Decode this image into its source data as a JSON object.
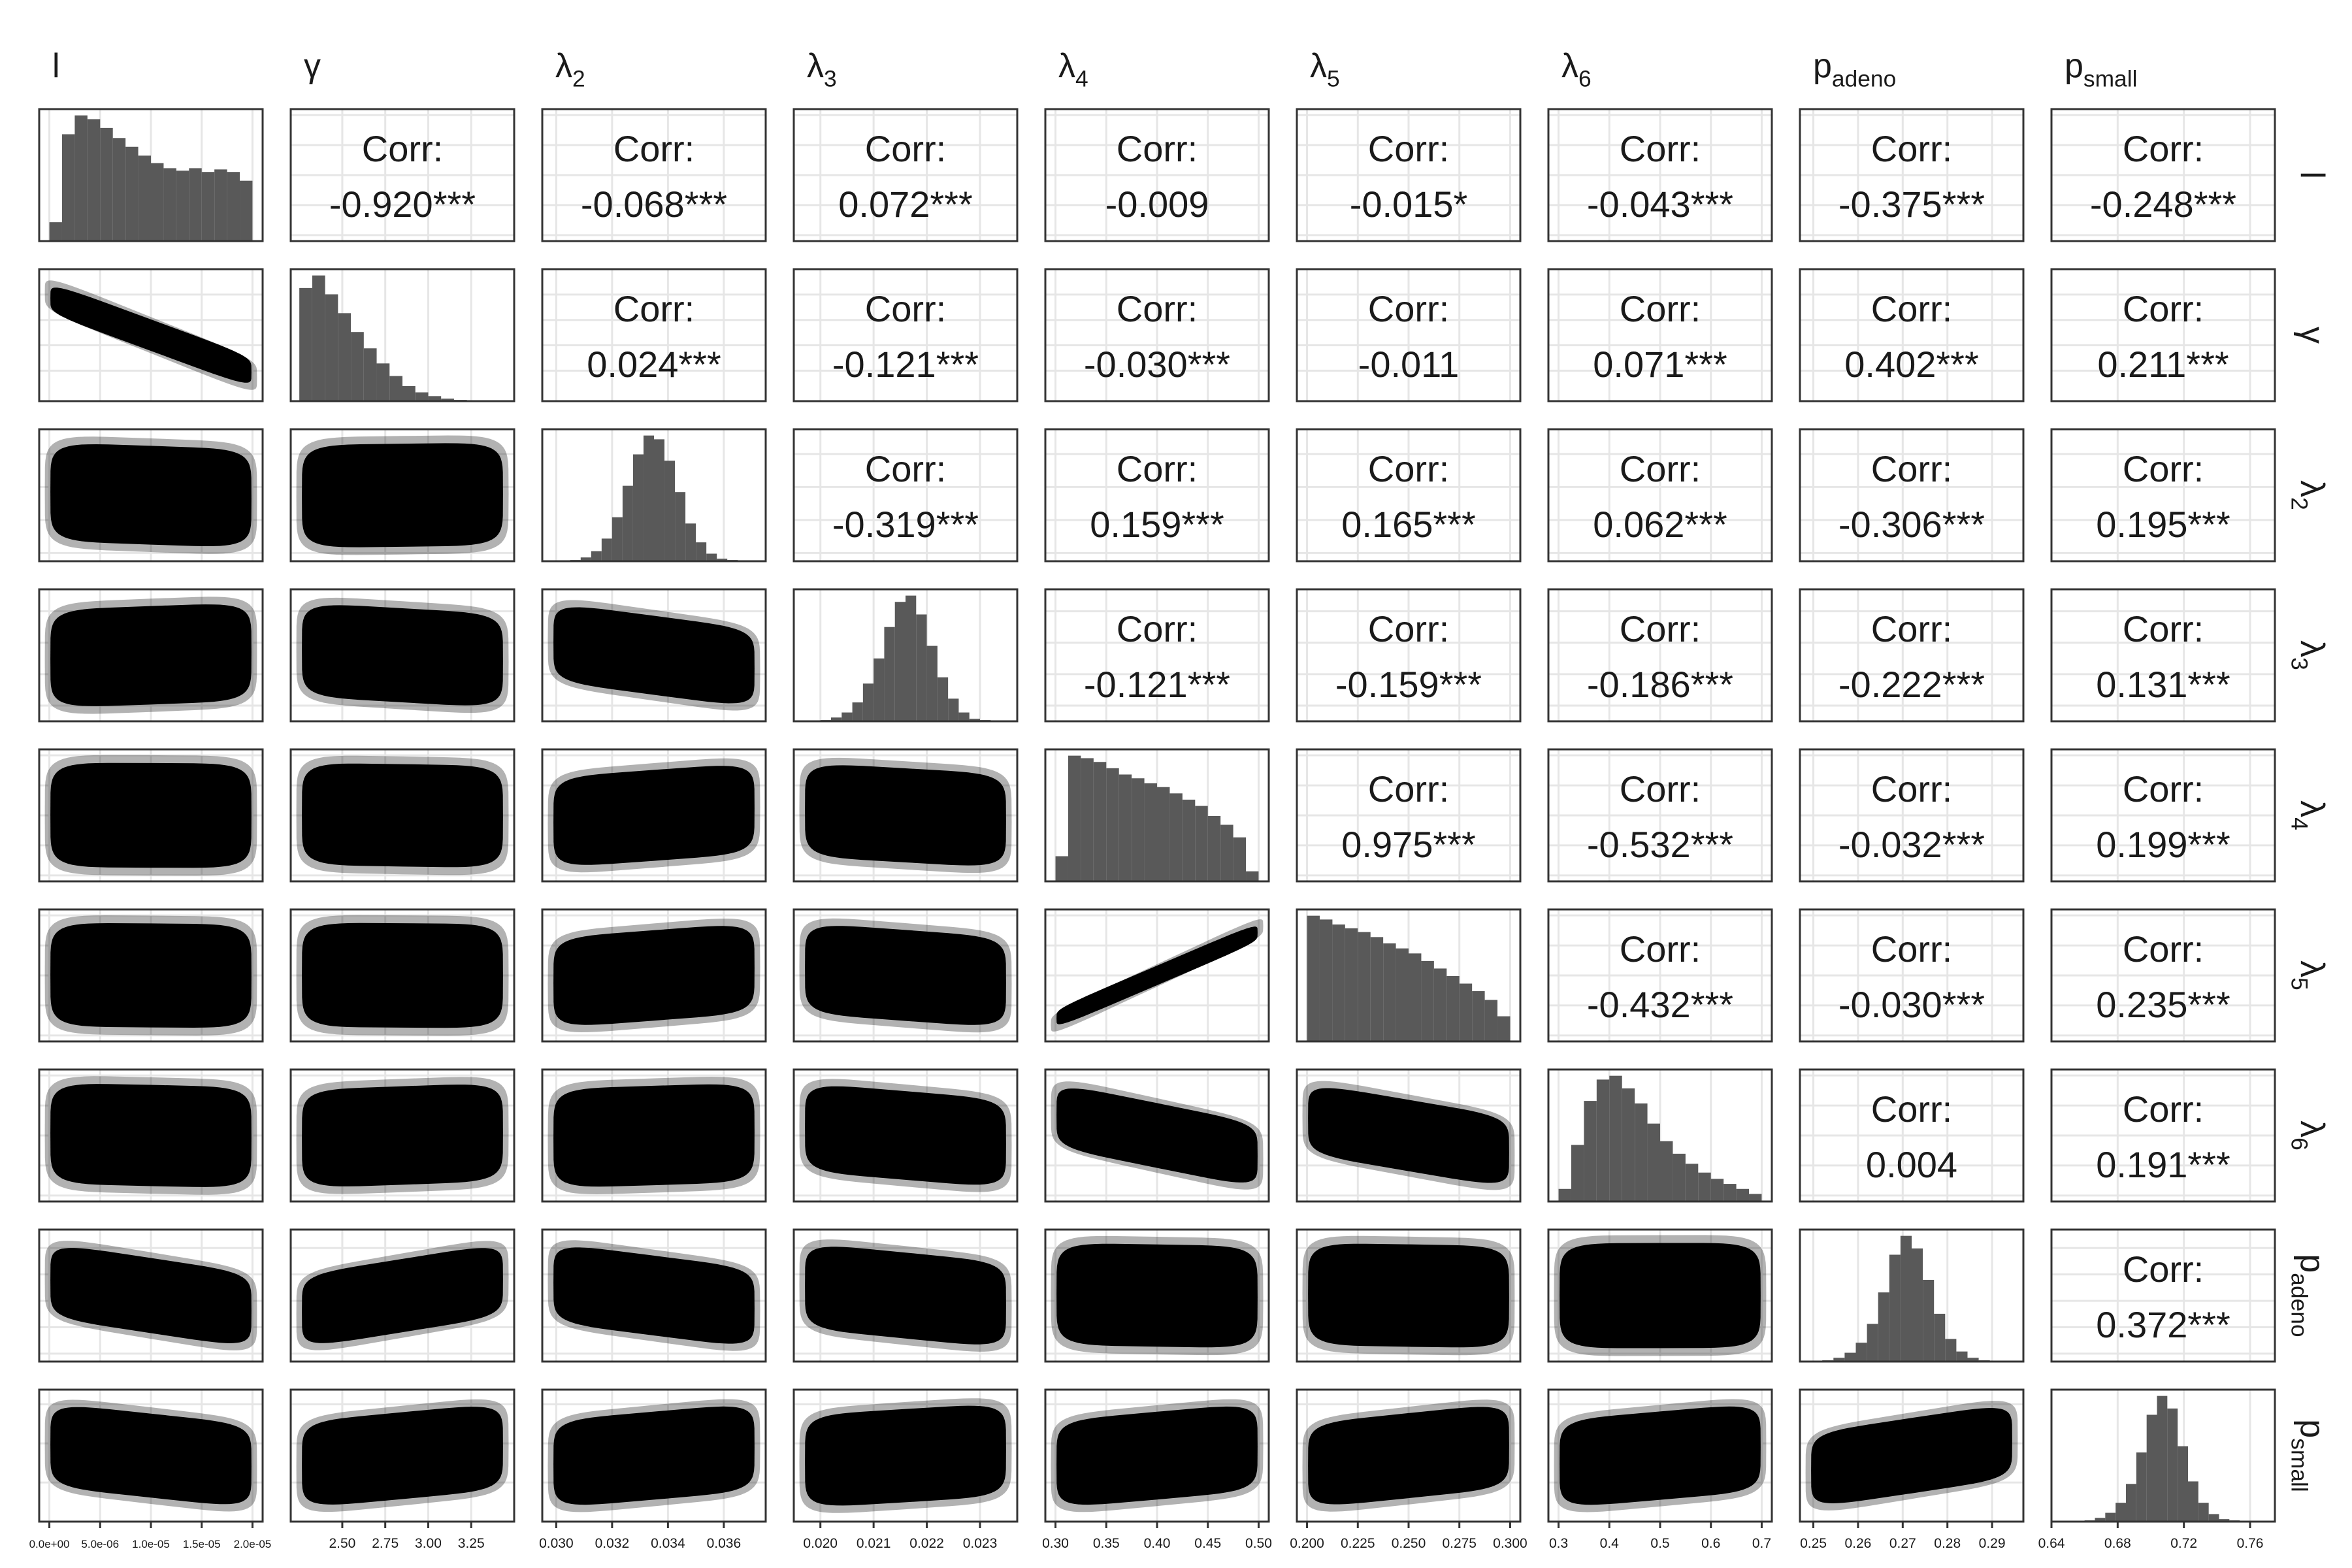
{
  "chart_data": {
    "type": "pairs",
    "corr_title": "Corr:",
    "hist_ylim": [
      0,
      1.05
    ],
    "hist_color": "#595959",
    "point_color": "#000000",
    "grid": true,
    "variables": [
      {
        "name": "l",
        "xlim": [
          -1e-06,
          2.1e-05
        ],
        "xticks": [
          {
            "value": 0,
            "label": "0.0e+00"
          },
          {
            "value": 5e-06,
            "label": "5.0e-06"
          },
          {
            "value": 1e-05,
            "label": "1.0e-05"
          },
          {
            "value": 1.5e-05,
            "label": "1.5e-05"
          },
          {
            "value": 2e-05,
            "label": "2.0e-05"
          }
        ],
        "bins": [
          0,
          1.25e-06,
          2.5e-06,
          3.75e-06,
          5e-06,
          6.25e-06,
          7.5e-06,
          8.75e-06,
          1e-05,
          1.125e-05,
          1.25e-05,
          1.375e-05,
          1.5e-05,
          1.625e-05,
          1.75e-05,
          1.875e-05,
          2e-05
        ],
        "counts": [
          0.15,
          0.85,
          1,
          0.97,
          0.9,
          0.82,
          0.75,
          0.68,
          0.62,
          0.58,
          0.56,
          0.58,
          0.55,
          0.57,
          0.55,
          0.48
        ]
      },
      {
        "name": "γ",
        "xlim": [
          2.2,
          3.5
        ],
        "xticks": [
          {
            "value": 2.5,
            "label": "2.50"
          },
          2.75,
          {
            "value": 3,
            "label": "3.00"
          },
          3.25
        ],
        "bins": [
          2.25,
          2.325,
          2.4,
          2.475,
          2.55,
          2.625,
          2.7,
          2.775,
          2.85,
          2.925,
          3.0,
          3.075,
          3.15,
          3.225,
          3.3,
          3.375,
          3.45
        ],
        "counts": [
          0.9,
          1,
          0.85,
          0.7,
          0.55,
          0.42,
          0.3,
          0.2,
          0.12,
          0.07,
          0.04,
          0.02,
          0.01,
          0.005,
          0.003,
          0.002
        ]
      },
      {
        "name": "λ",
        "sub": "2",
        "xlim": [
          0.0295,
          0.0375
        ],
        "xticks": [
          {
            "value": 0.03,
            "label": "0.030"
          },
          0.032,
          0.034,
          0.036
        ],
        "bins": [
          0.0305,
          0.030875,
          0.03125,
          0.031625,
          0.032,
          0.032375,
          0.03275,
          0.033125,
          0.0335,
          0.033875,
          0.03425,
          0.034625,
          0.035,
          0.035375,
          0.03575,
          0.036125,
          0.0365
        ],
        "counts": [
          0.01,
          0.03,
          0.08,
          0.18,
          0.35,
          0.6,
          0.85,
          1,
          0.97,
          0.8,
          0.55,
          0.3,
          0.15,
          0.06,
          0.02,
          0.01
        ]
      },
      {
        "name": "λ",
        "sub": "3",
        "xlim": [
          0.0195,
          0.0237
        ],
        "xticks": [
          {
            "value": 0.02,
            "label": "0.020"
          },
          0.021,
          0.022,
          0.023
        ],
        "bins": [
          0.02,
          0.0202,
          0.0204,
          0.0206,
          0.0208,
          0.021,
          0.0212,
          0.0214,
          0.0216,
          0.0218,
          0.022,
          0.0222,
          0.0224,
          0.0226,
          0.0228,
          0.023,
          0.0232
        ],
        "counts": [
          0.01,
          0.03,
          0.07,
          0.15,
          0.3,
          0.5,
          0.75,
          0.95,
          1,
          0.85,
          0.6,
          0.35,
          0.18,
          0.07,
          0.02,
          0.01
        ]
      },
      {
        "name": "λ",
        "sub": "4",
        "xlim": [
          0.29,
          0.51
        ],
        "xticks": [
          {
            "value": 0.3,
            "label": "0.30"
          },
          0.35,
          {
            "value": 0.4,
            "label": "0.40"
          },
          0.45,
          {
            "value": 0.5,
            "label": "0.50"
          }
        ],
        "bins": [
          0.3,
          0.3125,
          0.325,
          0.3375,
          0.35,
          0.3625,
          0.375,
          0.3875,
          0.4,
          0.4125,
          0.425,
          0.4375,
          0.45,
          0.4625,
          0.475,
          0.4875,
          0.5
        ],
        "counts": [
          0.2,
          1,
          0.98,
          0.95,
          0.9,
          0.85,
          0.82,
          0.78,
          0.75,
          0.7,
          0.65,
          0.6,
          0.52,
          0.45,
          0.35,
          0.08
        ]
      },
      {
        "name": "λ",
        "sub": "5",
        "xlim": [
          0.195,
          0.305
        ],
        "xticks": [
          {
            "value": 0.2,
            "label": "0.200"
          },
          0.225,
          {
            "value": 0.25,
            "label": "0.250"
          },
          0.275,
          {
            "value": 0.3,
            "label": "0.300"
          }
        ],
        "bins": [
          0.2,
          0.20625,
          0.2125,
          0.21875,
          0.225,
          0.23125,
          0.2375,
          0.24375,
          0.25,
          0.25625,
          0.2625,
          0.26875,
          0.275,
          0.28125,
          0.2875,
          0.29375,
          0.3
        ],
        "counts": [
          1,
          0.97,
          0.93,
          0.9,
          0.87,
          0.83,
          0.78,
          0.74,
          0.7,
          0.64,
          0.58,
          0.52,
          0.46,
          0.4,
          0.33,
          0.2
        ]
      },
      {
        "name": "λ",
        "sub": "6",
        "xlim": [
          0.28,
          0.72
        ],
        "xticks": [
          0.3,
          0.4,
          0.5,
          0.6,
          0.7
        ],
        "bins": [
          0.3,
          0.325,
          0.35,
          0.375,
          0.4,
          0.425,
          0.45,
          0.475,
          0.5,
          0.525,
          0.55,
          0.575,
          0.6,
          0.625,
          0.65,
          0.675,
          0.7
        ],
        "counts": [
          0.1,
          0.45,
          0.8,
          0.97,
          1,
          0.9,
          0.78,
          0.62,
          0.48,
          0.38,
          0.3,
          0.23,
          0.18,
          0.14,
          0.1,
          0.06
        ]
      },
      {
        "name": "p",
        "sub": "adeno",
        "xlim": [
          0.247,
          0.297
        ],
        "xticks": [
          0.25,
          0.26,
          0.27,
          0.28,
          0.29
        ],
        "bins": [
          0.252,
          0.2545,
          0.257,
          0.2595,
          0.262,
          0.2645,
          0.267,
          0.2695,
          0.272,
          0.2745,
          0.277,
          0.2795,
          0.282,
          0.2845,
          0.287,
          0.2895,
          0.292
        ],
        "counts": [
          0.01,
          0.03,
          0.07,
          0.15,
          0.3,
          0.55,
          0.85,
          1,
          0.9,
          0.65,
          0.38,
          0.18,
          0.08,
          0.03,
          0.01,
          0.005
        ]
      },
      {
        "name": "p",
        "sub": "small",
        "xlim": [
          0.64,
          0.775
        ],
        "xticks": [
          0.64,
          0.68,
          0.72,
          0.76
        ],
        "bins": [
          0.66,
          0.66625,
          0.6725,
          0.67875,
          0.685,
          0.69125,
          0.6975,
          0.70375,
          0.71,
          0.71625,
          0.7225,
          0.72875,
          0.735,
          0.74125,
          0.7475,
          0.75375,
          0.76
        ],
        "counts": [
          0.01,
          0.03,
          0.07,
          0.15,
          0.3,
          0.55,
          0.85,
          1,
          0.9,
          0.6,
          0.32,
          0.15,
          0.06,
          0.02,
          0.01,
          0.005
        ]
      }
    ],
    "corr": [
      [
        null,
        -0.92,
        -0.068,
        0.072,
        -0.009,
        -0.015,
        -0.043,
        -0.375,
        -0.248
      ],
      [
        null,
        null,
        0.024,
        -0.121,
        -0.03,
        -0.011,
        0.071,
        0.402,
        0.211
      ],
      [
        null,
        null,
        null,
        -0.319,
        0.159,
        0.165,
        0.062,
        -0.306,
        0.195
      ],
      [
        null,
        null,
        null,
        null,
        -0.121,
        -0.159,
        -0.186,
        -0.222,
        0.131
      ],
      [
        null,
        null,
        null,
        null,
        null,
        0.975,
        -0.532,
        -0.032,
        0.199
      ],
      [
        null,
        null,
        null,
        null,
        null,
        null,
        -0.432,
        -0.03,
        0.235
      ],
      [
        null,
        null,
        null,
        null,
        null,
        null,
        null,
        0.004,
        0.191
      ],
      [
        null,
        null,
        null,
        null,
        null,
        null,
        null,
        null,
        0.372
      ],
      [
        null,
        null,
        null,
        null,
        null,
        null,
        null,
        null,
        null
      ]
    ],
    "corr_labels": [
      [
        null,
        "-0.920***",
        "-0.068***",
        "0.072***",
        "-0.009",
        "-0.015*",
        "-0.043***",
        "-0.375***",
        "-0.248***"
      ],
      [
        null,
        null,
        "0.024***",
        "-0.121***",
        "-0.030***",
        "-0.011",
        "0.071***",
        "0.402***",
        "0.211***"
      ],
      [
        null,
        null,
        null,
        "-0.319***",
        "0.159***",
        "0.165***",
        "0.062***",
        "-0.306***",
        "0.195***"
      ],
      [
        null,
        null,
        null,
        null,
        "-0.121***",
        "-0.159***",
        "-0.186***",
        "-0.222***",
        "0.131***"
      ],
      [
        null,
        null,
        null,
        null,
        null,
        "0.975***",
        "-0.532***",
        "-0.032***",
        "0.199***"
      ],
      [
        null,
        null,
        null,
        null,
        null,
        null,
        "-0.432***",
        "-0.030***",
        "0.235***"
      ],
      [
        null,
        null,
        null,
        null,
        null,
        null,
        null,
        "0.004",
        "0.191***"
      ],
      [
        null,
        null,
        null,
        null,
        null,
        null,
        null,
        null,
        "0.372***"
      ],
      [
        null,
        null,
        null,
        null,
        null,
        null,
        null,
        null,
        null
      ]
    ]
  }
}
